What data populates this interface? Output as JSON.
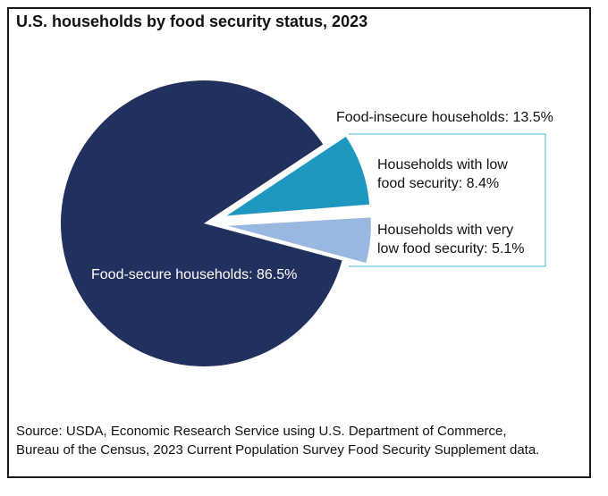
{
  "title": "U.S. households by food security status, 2023",
  "source": {
    "line1": "Source: USDA, Economic Research Service using U.S. Department of Commerce,",
    "line2": "Bureau of the Census, 2023 Current Population Survey Food Security Supplement data."
  },
  "colors": {
    "secure": "#22305e",
    "low": "#1e98c0",
    "very_low": "#98b8e0",
    "bracket": "#6ec5dd",
    "text_on_dark": "#ffffff",
    "text": "#111111"
  },
  "chart_data": {
    "type": "pie",
    "title": "U.S. households by food security status, 2023",
    "unit": "percent",
    "slices": [
      {
        "key": "secure",
        "label": "Food-secure households: 86.5%",
        "value": 86.5,
        "exploded": false
      },
      {
        "key": "low",
        "label_line1": "Households with low",
        "label_line2": "food security: 8.4%",
        "value": 8.4,
        "exploded": true
      },
      {
        "key": "very_low",
        "label_line1": "Households with very",
        "label_line2": "low food security: 5.1%",
        "value": 5.1,
        "exploded": true
      }
    ],
    "group_annotation": "Food-insecure households: 13.5%"
  }
}
